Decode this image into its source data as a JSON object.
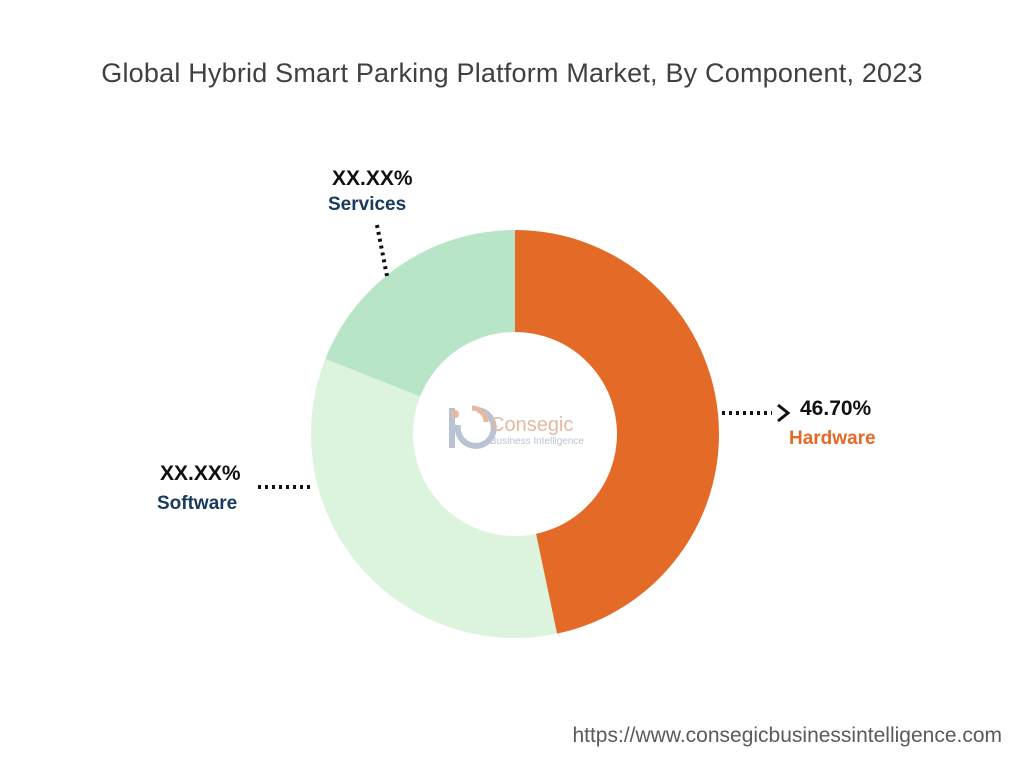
{
  "chart_data": {
    "type": "pie",
    "variant": "donut",
    "title": "Global Hybrid Smart Parking Platform Market, By Component, 2023",
    "categories": [
      "Hardware",
      "Software",
      "Services"
    ],
    "values": [
      46.7,
      34.3,
      19.0
    ],
    "labels": [
      "46.70%",
      "XX.XX%",
      "XX.XX%"
    ],
    "colors": [
      "#e36a27",
      "#dcf4de",
      "#b8e5c8"
    ],
    "label_colors": [
      "#e36a27",
      "#173a5e",
      "#173a5e"
    ],
    "legend": "none"
  },
  "logo": {
    "name": "Consegic",
    "tagline": "Business Intelligence",
    "icon": "consegic-logo-icon"
  },
  "source": "https://www.consegicbusinessintelligence.com"
}
